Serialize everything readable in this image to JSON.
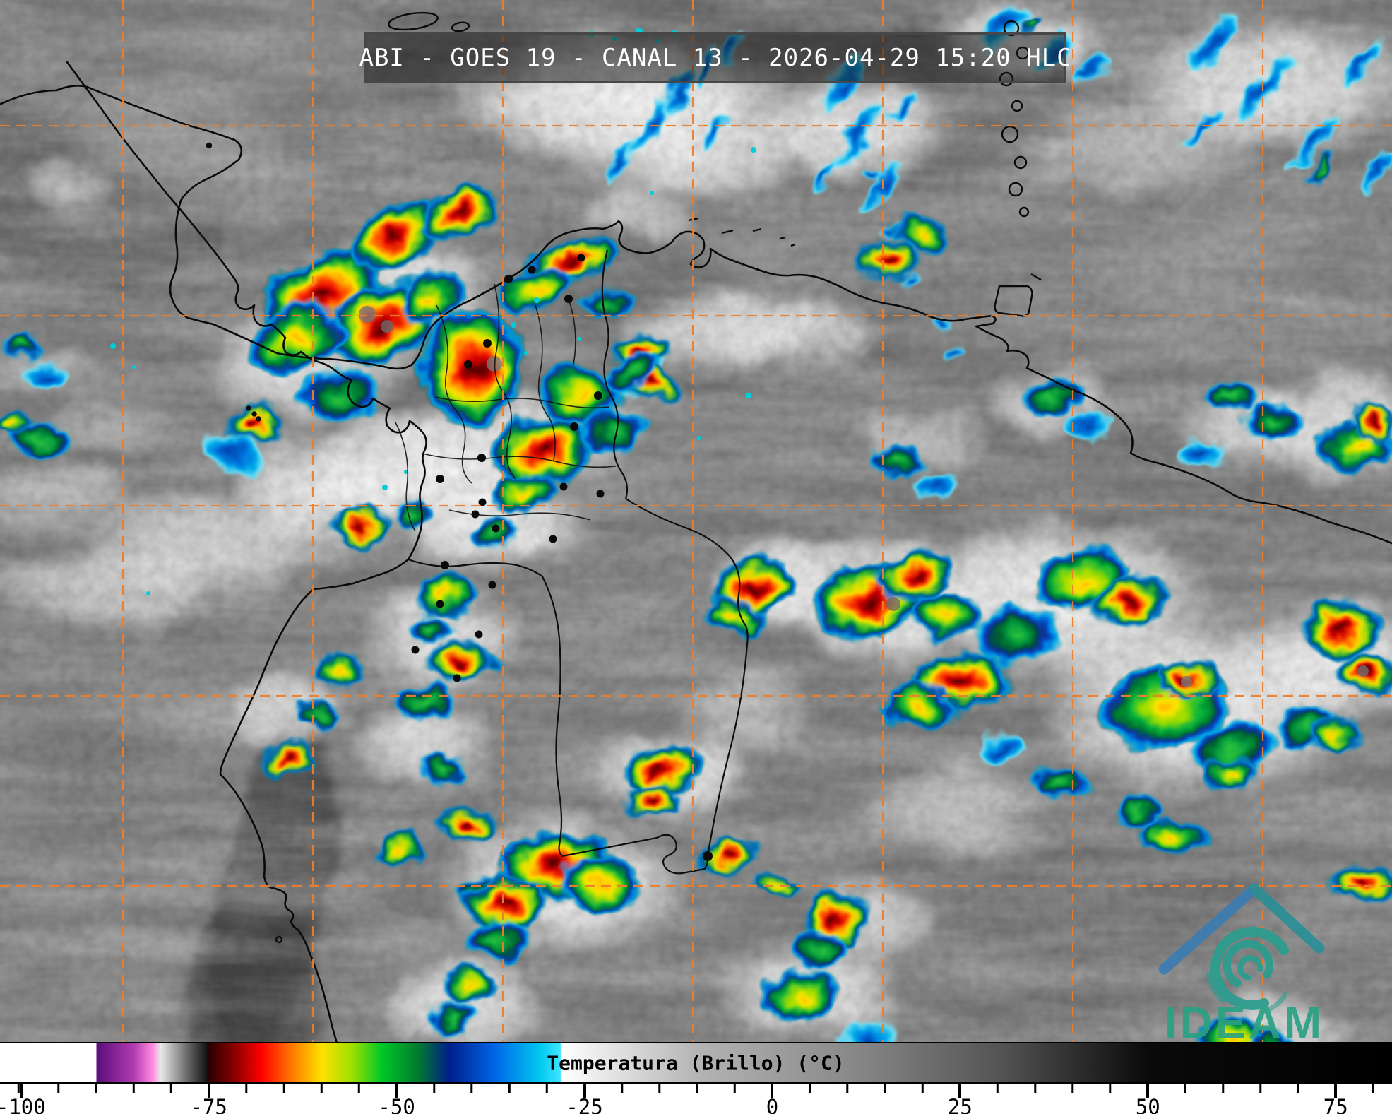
{
  "header": {
    "title": "ABI - GOES 19 - CANAL 13 - 2026-04-29 15:20 HLC"
  },
  "logo": {
    "text": "IDEAM",
    "teal": "#2A9D8F",
    "blue": "#3C7CB4",
    "text_color": "#2AA183"
  },
  "grid": {
    "color": "#ED7F2F"
  },
  "map": {
    "type": "infrared-satellite-image",
    "region_labels_visible": false
  },
  "colorbar": {
    "label": "Temperatura (Brillo) (°C)",
    "units": "°C",
    "range": [
      -102.8,
      82.5
    ],
    "tick_values": [
      -100,
      -75,
      -50,
      -25,
      0,
      25,
      50,
      75
    ],
    "tick_labels": [
      "-100",
      "-75",
      "-50",
      "-25",
      "0",
      "25",
      "50",
      "75"
    ],
    "minor_tick_step": 5,
    "stops": [
      [
        0.0,
        "#ffffff"
      ],
      [
        0.0689,
        "#ffffff"
      ],
      [
        0.0696,
        "#5a0f7a"
      ],
      [
        0.0961,
        "#b03ab0"
      ],
      [
        0.1096,
        "#ff8ce0"
      ],
      [
        0.1155,
        "#e8e8e8"
      ],
      [
        0.1338,
        "#6e6e6e"
      ],
      [
        0.1489,
        "#111111"
      ],
      [
        0.15,
        "#2a0000"
      ],
      [
        0.1716,
        "#9c0000"
      ],
      [
        0.1878,
        "#ff0000"
      ],
      [
        0.2094,
        "#ff7800"
      ],
      [
        0.231,
        "#ffe100"
      ],
      [
        0.2526,
        "#a0e000"
      ],
      [
        0.2742,
        "#00c828"
      ],
      [
        0.3011,
        "#007830"
      ],
      [
        0.3227,
        "#001e8c"
      ],
      [
        0.3551,
        "#0064e6"
      ],
      [
        0.3875,
        "#00c8f0"
      ],
      [
        0.4026,
        "#40e4ff"
      ],
      [
        0.4036,
        "#ffffff"
      ],
      [
        0.5008,
        "#b4b4b4"
      ],
      [
        0.6087,
        "#8a8a8a"
      ],
      [
        0.7167,
        "#555555"
      ],
      [
        0.8246,
        "#0a0a0a"
      ],
      [
        1.0,
        "#000000"
      ]
    ]
  }
}
